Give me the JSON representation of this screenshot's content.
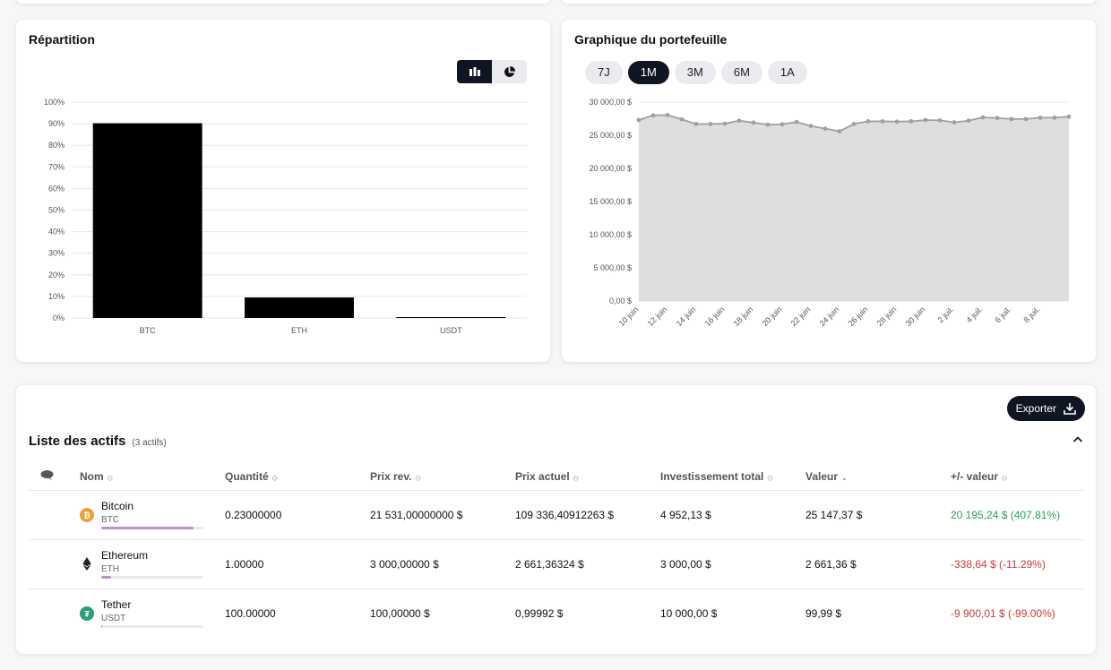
{
  "allocation_card": {
    "title": "Répartition",
    "view_toggle": {
      "active": "bar",
      "options": [
        "bar-view-icon",
        "pie-view-icon"
      ]
    }
  },
  "portfolio_card": {
    "title": "Graphique du portefeuille",
    "periods": [
      "7J",
      "1M",
      "3M",
      "6M",
      "1A"
    ],
    "active_period": "1M"
  },
  "chart_data": [
    {
      "type": "bar",
      "title": "",
      "categories": [
        "BTC",
        "ETH",
        "USDT"
      ],
      "values": [
        90.2,
        9.5,
        0.4
      ],
      "y_ticks": [
        "0%",
        "10%",
        "20%",
        "30%",
        "40%",
        "50%",
        "60%",
        "70%",
        "80%",
        "90%",
        "100%"
      ],
      "ylim": [
        0,
        100
      ],
      "grid": true,
      "color": "#000000"
    },
    {
      "type": "area",
      "title": "",
      "x_tick_labels": [
        "10 juin",
        "12 juin",
        "14 juin",
        "16 juin",
        "18 juin",
        "20 juin",
        "22 juin",
        "24 juin",
        "26 juin",
        "28 juin",
        "30 juin",
        "2 juil.",
        "4 juil.",
        "6 juil.",
        "8 juil."
      ],
      "y_ticks": [
        "0,00 $",
        "5 000,00 $",
        "10 000,00 $",
        "15 000,00 $",
        "20 000,00 $",
        "25 000,00 $",
        "30 000,00 $"
      ],
      "ylim": [
        0,
        30000
      ],
      "values": [
        27300,
        28000,
        28050,
        27400,
        26700,
        26700,
        26750,
        27200,
        26900,
        26600,
        26650,
        27000,
        26400,
        26000,
        25600,
        26700,
        27100,
        27100,
        27050,
        27100,
        27300,
        27250,
        26950,
        27200,
        27700,
        27600,
        27450,
        27450,
        27650,
        27650,
        27800
      ],
      "grid": true,
      "line_color": "#a0a0a0",
      "fill_color": "#dedede"
    }
  ],
  "assets": {
    "title": "Liste des actifs",
    "count": "(3 actifs)",
    "export_label": "Exporter",
    "columns": {
      "nom": "Nom",
      "quantite": "Quantité",
      "prix_rev": "Prix rev.",
      "prix_actuel": "Prix actuel",
      "investissement": "Investissement total",
      "valeur": "Valeur",
      "plus_minus": "+/- valeur"
    },
    "rows": [
      {
        "name": "Bitcoin",
        "symbol": "BTC",
        "icon": "bitcoin-icon",
        "icon_color": "#e8a23a",
        "share": 0.9,
        "quantity": "0.23000000",
        "cost_price": "21 531,00000000 $",
        "current_price": "109 336,40912263 $",
        "invested": "4 952,13 $",
        "value": "25 147,37 $",
        "pnl": "20 195,24 $ (407.81%)",
        "pnl_sign": "pos"
      },
      {
        "name": "Ethereum",
        "symbol": "ETH",
        "icon": "ethereum-icon",
        "icon_color": "#222222",
        "share": 0.1,
        "quantity": "1.00000",
        "cost_price": "3 000,00000 $",
        "current_price": "2 661,36324 $",
        "invested": "3 000,00 $",
        "value": "2 661,36 $",
        "pnl": "-338,64 $ (-11.29%)",
        "pnl_sign": "neg"
      },
      {
        "name": "Tether",
        "symbol": "USDT",
        "icon": "tether-icon",
        "icon_color": "#26a17b",
        "share": 0.004,
        "quantity": "100.00000",
        "cost_price": "100,00000 $",
        "current_price": "0,99992 $",
        "invested": "10 000,00 $",
        "value": "99,99 $",
        "pnl": "-9 900,01 $ (-99.00%)",
        "pnl_sign": "neg"
      }
    ]
  }
}
